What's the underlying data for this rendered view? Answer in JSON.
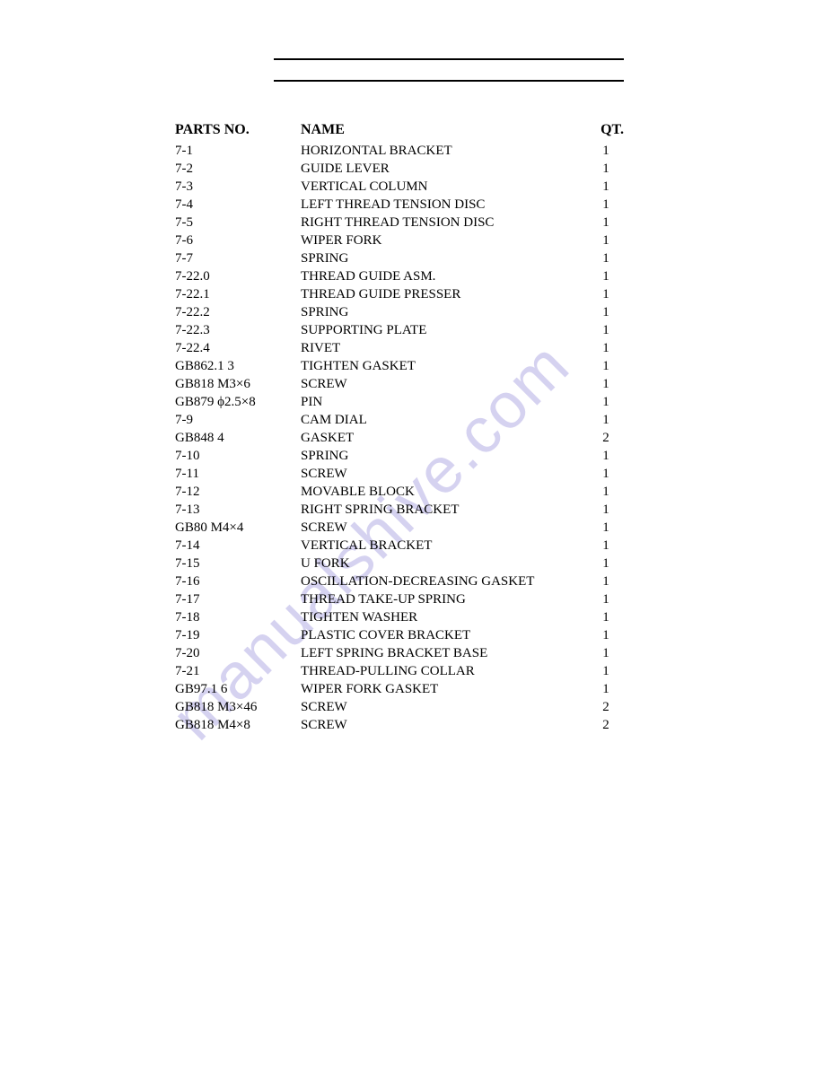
{
  "header": {
    "parts_no": "PARTS NO.",
    "name": "NAME",
    "qt": "QT."
  },
  "watermark": {
    "text": "manualshive.com",
    "color": "#8a7fd6"
  },
  "rows": [
    {
      "partsno": "7-1",
      "name": "HORIZONTAL BRACKET",
      "qt": "1"
    },
    {
      "partsno": "7-2",
      "name": "GUIDE LEVER",
      "qt": "1"
    },
    {
      "partsno": "7-3",
      "name": "VERTICAL COLUMN",
      "qt": "1"
    },
    {
      "partsno": "7-4",
      "name": "LEFT THREAD TENSION DISC",
      "qt": "1"
    },
    {
      "partsno": "7-5",
      "name": "RIGHT THREAD TENSION DISC",
      "qt": "1"
    },
    {
      "partsno": "7-6",
      "name": "WIPER FORK",
      "qt": "1"
    },
    {
      "partsno": "7-7",
      "name": "SPRING",
      "qt": "1"
    },
    {
      "partsno": "7-22.0",
      "name": "THREAD GUIDE ASM.",
      "qt": "1"
    },
    {
      "partsno": "7-22.1",
      "name": "THREAD GUIDE PRESSER",
      "qt": "1"
    },
    {
      "partsno": "7-22.2",
      "name": "SPRING",
      "qt": "1"
    },
    {
      "partsno": "7-22.3",
      "name": "SUPPORTING PLATE",
      "qt": "1"
    },
    {
      "partsno": "7-22.4",
      "name": "RIVET",
      "qt": "1"
    },
    {
      "partsno": "GB862.1 3",
      "name": "TIGHTEN GASKET",
      "qt": "1"
    },
    {
      "partsno": "GB818 M3×6",
      "name": "SCREW",
      "qt": "1"
    },
    {
      "partsno": "GB879 ϕ2.5×8",
      "name": "PIN",
      "qt": "1"
    },
    {
      "partsno": "7-9",
      "name": "CAM DIAL",
      "qt": "1"
    },
    {
      "partsno": "GB848 4",
      "name": "GASKET",
      "qt": "2"
    },
    {
      "partsno": "7-10",
      "name": "SPRING",
      "qt": "1"
    },
    {
      "partsno": "7-11",
      "name": "SCREW",
      "qt": "1"
    },
    {
      "partsno": "7-12",
      "name": "MOVABLE BLOCK",
      "qt": "1"
    },
    {
      "partsno": "7-13",
      "name": "RIGHT SPRING BRACKET",
      "qt": "1"
    },
    {
      "partsno": "GB80 M4×4",
      "name": "SCREW",
      "qt": "1"
    },
    {
      "partsno": "7-14",
      "name": "VERTICAL BRACKET",
      "qt": "1"
    },
    {
      "partsno": "7-15",
      "name": "U FORK",
      "qt": "1"
    },
    {
      "partsno": "7-16",
      "name": "OSCILLATION-DECREASING GASKET",
      "qt": "1"
    },
    {
      "partsno": "7-17",
      "name": "THREAD TAKE-UP SPRING",
      "qt": "1"
    },
    {
      "partsno": "7-18",
      "name": "TIGHTEN WASHER",
      "qt": "1"
    },
    {
      "partsno": "7-19",
      "name": "PLASTIC COVER BRACKET",
      "qt": "1"
    },
    {
      "partsno": "7-20",
      "name": "LEFT SPRING BRACKET BASE",
      "qt": "1"
    },
    {
      "partsno": "7-21",
      "name": "THREAD-PULLING COLLAR",
      "qt": "1"
    },
    {
      "partsno": "GB97.1 6",
      "name": "WIPER FORK GASKET",
      "qt": "1"
    },
    {
      "partsno": "GB818 M3×46",
      "name": "SCREW",
      "qt": "2"
    },
    {
      "partsno": "GB818 M4×8",
      "name": "SCREW",
      "qt": "2"
    }
  ]
}
